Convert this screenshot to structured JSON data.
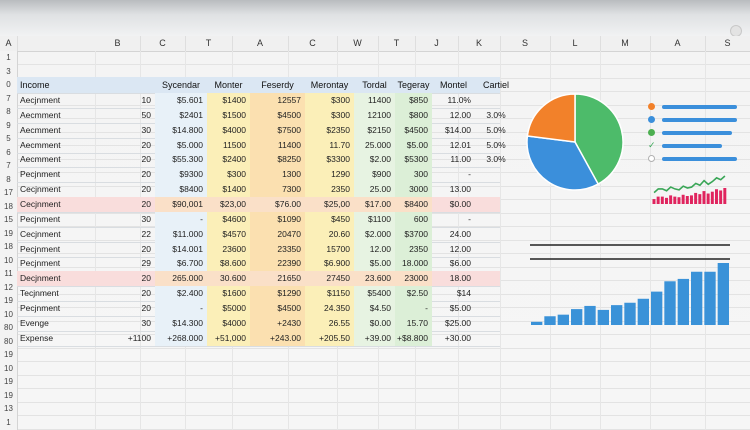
{
  "columns": [
    "A",
    "B",
    "C",
    "T",
    "A",
    "C",
    "W",
    "T",
    "J",
    "K",
    "S",
    "L",
    "M",
    "A",
    "S"
  ],
  "row_numbers": [
    "1",
    "3",
    "0",
    "7",
    "8",
    "9",
    "5",
    "6",
    "7",
    "8",
    "17",
    "18",
    "15",
    "19",
    "18",
    "10",
    "11",
    "12",
    "19",
    "10",
    "80",
    "80",
    "19",
    "10",
    "19",
    "19",
    "13",
    "1"
  ],
  "table": {
    "headers": [
      "Income",
      "",
      "Sycendar",
      "Monter",
      "Feserdy",
      "Merontay",
      "Tordal",
      "Tegeray",
      "Montel",
      "Cartiel"
    ],
    "rows": [
      {
        "num": "8",
        "label": "Aecjnment",
        "b": "10",
        "c": "$5.601",
        "d": "$1400",
        "e": "12557",
        "f": "$300",
        "g": "11400",
        "h": "$850",
        "i": "11.0%",
        "j": "",
        "highlight": ""
      },
      {
        "num": "9",
        "label": "Aecmment",
        "b": "50",
        "c": "$2401",
        "d": "$1500",
        "e": "$4500",
        "f": "$300",
        "g": "12100",
        "h": "$800",
        "i": "12.00",
        "j": "3.0%",
        "highlight": ""
      },
      {
        "num": "5",
        "label": "Aecmment",
        "b": "30",
        "c": "$14.800",
        "d": "$4000",
        "e": "$7500",
        "f": "$2350",
        "g": "$2150",
        "h": "$4500",
        "i": "$14.00",
        "j": "5.0%",
        "highlight": ""
      },
      {
        "num": "6",
        "label": "Aecmment",
        "b": "20",
        "c": "$5.000",
        "d": "11500",
        "e": "11400",
        "f": "11.70",
        "g": "25.000",
        "h": "$5.00",
        "i": "12.01",
        "j": "5.0%",
        "highlight": ""
      },
      {
        "num": "7",
        "label": "Aecmment",
        "b": "20",
        "c": "$55.300",
        "d": "$2400",
        "e": "$8250",
        "f": "$3300",
        "g": "$2.00",
        "h": "$5300",
        "i": "11.00",
        "j": "3.0%",
        "highlight": ""
      },
      {
        "num": "8",
        "label": "Pecjnment",
        "b": "20",
        "c": "$9300",
        "d": "$300",
        "e": "1300",
        "f": "1290",
        "g": "$900",
        "h": "300",
        "i": "-",
        "j": "",
        "highlight": ""
      },
      {
        "num": "7",
        "label": "Cecjnment",
        "b": "20",
        "c": "$8400",
        "d": "$1400",
        "e": "7300",
        "f": "2350",
        "g": "25.00",
        "h": "3000",
        "i": "13.00",
        "j": "",
        "highlight": ""
      },
      {
        "num": "17",
        "label": "Cecjnment",
        "b": "20",
        "c": "$90,001",
        "d": "$23,00",
        "e": "$76.00",
        "f": "$25,00",
        "g": "$17.00",
        "h": "$8400",
        "i": "$0.00",
        "j": "",
        "highlight": "pink"
      },
      {
        "num": "18",
        "label": "Pecjnment",
        "b": "30",
        "c": "-",
        "d": "$4600",
        "e": "$1090",
        "f": "$450",
        "g": "$1100",
        "h": "600",
        "i": "-",
        "j": "",
        "highlight": ""
      },
      {
        "num": "10",
        "label": "Cecjnment",
        "b": "22",
        "c": "$11.000",
        "d": "$4570",
        "e": "20470",
        "f": "20.60",
        "g": "$2.000",
        "h": "$3700",
        "i": "24.00",
        "j": "",
        "highlight": ""
      },
      {
        "num": "13",
        "label": "Pecjnment",
        "b": "20",
        "c": "$14.001",
        "d": "23600",
        "e": "23350",
        "f": "15700",
        "g": "12.00",
        "h": "2350",
        "i": "12.00",
        "j": "",
        "highlight": ""
      },
      {
        "num": "19",
        "label": "Pecjnment",
        "b": "29",
        "c": "$6.700",
        "d": "$8.600",
        "e": "22390",
        "f": "$6.900",
        "g": "$5.00",
        "h": "18.000",
        "i": "$6.00",
        "j": "",
        "highlight": ""
      },
      {
        "num": "18",
        "label": "Decjnment",
        "b": "20",
        "c": "265.000",
        "d": "30.600",
        "e": "21650",
        "f": "27450",
        "g": "23.600",
        "h": "23000",
        "i": "18.00",
        "j": "",
        "highlight": "pink"
      },
      {
        "num": "16",
        "label": "Tecjnment",
        "b": "20",
        "c": "$2.400",
        "d": "$1600",
        "e": "$1290",
        "f": "$1150",
        "g": "$5400",
        "h": "$2.50",
        "i": "$14",
        "j": "",
        "highlight": ""
      },
      {
        "num": "11",
        "label": "Pecjnment",
        "b": "20",
        "c": "-",
        "d": "$5000",
        "e": "$4500",
        "f": "24.350",
        "g": "$4.50",
        "h": "-",
        "i": "$5.00",
        "j": "",
        "highlight": ""
      },
      {
        "num": "12",
        "label": "Evenge",
        "b": "30",
        "c": "$14.300",
        "d": "$4000",
        "e": "+2430",
        "f": "26.55",
        "g": "$0.00",
        "h": "15.70",
        "i": "$25.00",
        "j": "",
        "highlight": ""
      },
      {
        "num": "19",
        "label": "Expense",
        "b": "+1100",
        "c": "+268.000",
        "d": "+51,000",
        "e": "+243.00",
        "f": "+205.50",
        "g": "+39.00",
        "h": "+$8.800",
        "i": "+30.00",
        "j": "",
        "highlight": ""
      }
    ]
  },
  "side_legend": [
    {
      "icon": "orange-dot-icon",
      "color": "#f2812a"
    },
    {
      "icon": "blue-dot-icon",
      "color": "#3b8fdb"
    },
    {
      "icon": "green-dot-icon",
      "color": "#4caf50"
    },
    {
      "icon": "check-icon",
      "color": "#3aa657"
    },
    {
      "icon": "gray-dot-icon",
      "color": "#b0b0b0"
    }
  ],
  "chart_data": [
    {
      "type": "pie",
      "values": [
        42,
        35,
        23
      ],
      "colors": [
        "#4dbb6a",
        "#3b8fdb",
        "#f2812a"
      ]
    },
    {
      "type": "bar",
      "values": [
        4,
        11,
        13,
        20,
        24,
        19,
        25,
        28,
        33,
        42,
        55,
        58,
        67,
        67,
        78
      ],
      "color": "#3a92d8"
    },
    {
      "type": "bar",
      "values": [
        8,
        12,
        12,
        10,
        14,
        12,
        11,
        15,
        13,
        14,
        18,
        16,
        21,
        17,
        20,
        24,
        22,
        26
      ],
      "color": "#e0245e",
      "trend_color": "#3aa657"
    }
  ]
}
